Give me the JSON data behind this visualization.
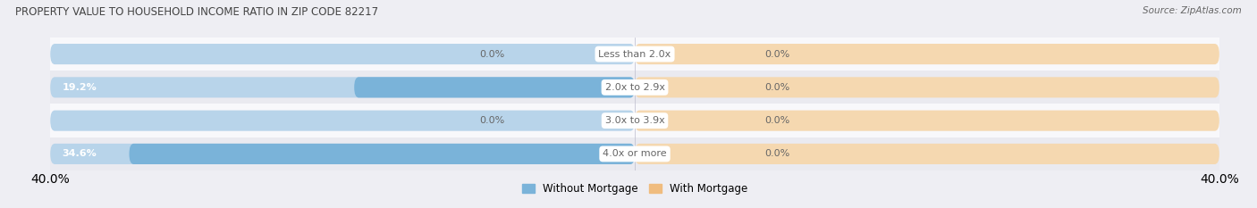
{
  "title": "PROPERTY VALUE TO HOUSEHOLD INCOME RATIO IN ZIP CODE 82217",
  "source": "Source: ZipAtlas.com",
  "categories": [
    "Less than 2.0x",
    "2.0x to 2.9x",
    "3.0x to 3.9x",
    "4.0x or more"
  ],
  "without_mortgage": [
    0.0,
    19.2,
    0.0,
    34.6
  ],
  "with_mortgage": [
    0.0,
    0.0,
    0.0,
    0.0
  ],
  "xlim": [
    -40.0,
    40.0
  ],
  "color_without": "#7ab3d9",
  "color_without_light": "#b8d4ea",
  "color_with": "#f0bc7e",
  "color_with_light": "#f5d8b0",
  "bg_color": "#eeeef3",
  "row_color_odd": "#f8f8fb",
  "row_color_even": "#eaeaf0",
  "title_color": "#444444",
  "label_color": "#666666",
  "title_fontsize": 8.5,
  "source_fontsize": 7.5,
  "label_fontsize": 8,
  "category_fontsize": 8,
  "legend_fontsize": 8.5,
  "bar_height": 0.62
}
